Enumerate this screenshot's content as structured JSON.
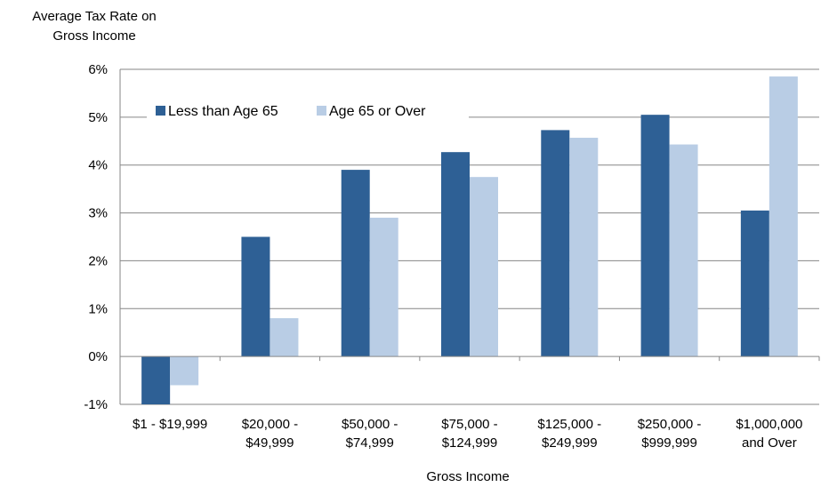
{
  "chart_data": {
    "type": "bar",
    "ylabel_lines": [
      "Average Tax Rate on",
      "Gross Income"
    ],
    "xlabel": "Gross Income",
    "categories": [
      [
        "$1 - $19,999"
      ],
      [
        "$20,000 -",
        "$49,999"
      ],
      [
        "$50,000 -",
        "$74,999"
      ],
      [
        "$75,000 -",
        "$124,999"
      ],
      [
        "$125,000 -",
        "$249,999"
      ],
      [
        "$250,000 -",
        "$999,999"
      ],
      [
        "$1,000,000",
        "and Over"
      ]
    ],
    "series": [
      {
        "name": "Less than Age 65",
        "color": "#2e6095",
        "values": [
          -1.0,
          2.5,
          3.9,
          4.27,
          4.73,
          5.05,
          3.05
        ]
      },
      {
        "name": "Age 65 or Over",
        "color": "#b9cde5",
        "values": [
          -0.6,
          0.8,
          2.9,
          3.75,
          4.57,
          4.43,
          5.85
        ]
      }
    ],
    "ylim": [
      -1,
      6
    ],
    "yticks": [
      -1,
      0,
      1,
      2,
      3,
      4,
      5,
      6
    ],
    "ytick_labels": [
      "-1%",
      "0%",
      "1%",
      "2%",
      "3%",
      "4%",
      "5%",
      "6%"
    ],
    "grid": true,
    "legend_position": "top-left"
  }
}
